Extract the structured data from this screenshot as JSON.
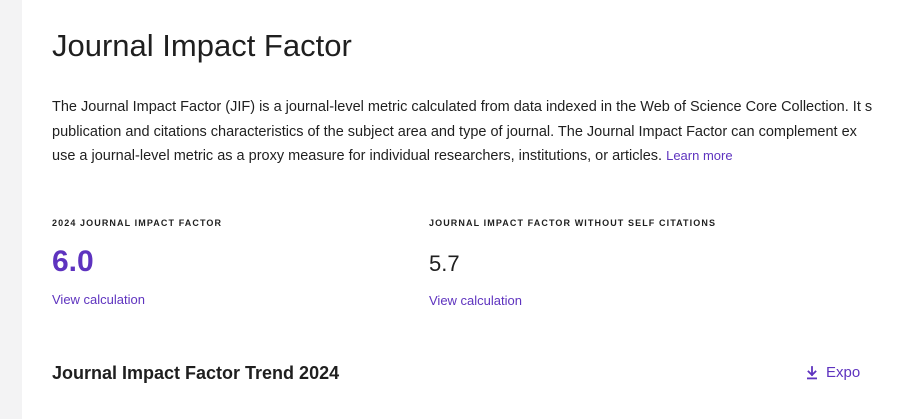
{
  "page": {
    "title": "Journal Impact Factor"
  },
  "description": {
    "line1": "The Journal Impact Factor (JIF) is a journal-level metric calculated from data indexed in the Web of Science Core Collection. It s",
    "line2": "publication and citations characteristics of the subject area and type of journal. The Journal Impact Factor can complement ex",
    "line3": "use a journal-level metric as a proxy measure for individual researchers, institutions, or articles.",
    "learn_more": "Learn more"
  },
  "metrics": [
    {
      "label": "2024 JOURNAL IMPACT FACTOR",
      "value": "6.0",
      "link": "View calculation"
    },
    {
      "label": "JOURNAL IMPACT FACTOR WITHOUT SELF CITATIONS",
      "value": "5.7",
      "link": "View calculation"
    }
  ],
  "trend": {
    "title": "Journal Impact Factor Trend 2024",
    "export_label": "Expo",
    "export_icon": "download-icon"
  },
  "colors": {
    "accent": "#5e33bf",
    "text": "#1f1f1f",
    "rail": "#f3f3f4"
  }
}
